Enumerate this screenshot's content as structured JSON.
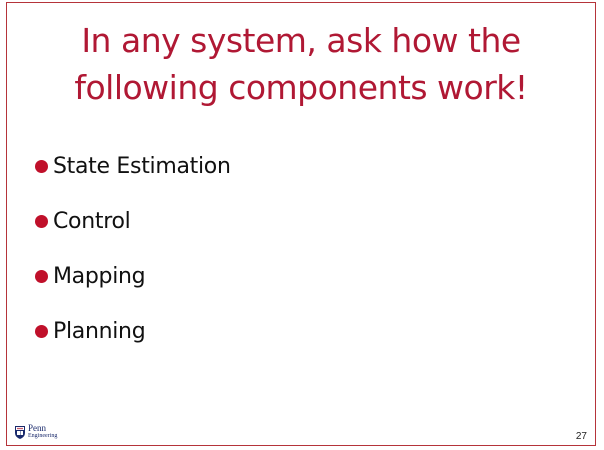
{
  "slide": {
    "title": "In any system, ask how the following components work!",
    "bullets": [
      {
        "label": "State Estimation"
      },
      {
        "label": "Control"
      },
      {
        "label": "Mapping"
      },
      {
        "label": "Planning"
      }
    ],
    "footer": {
      "logo_line1": "Penn",
      "logo_line2": "Engineering",
      "page_number": "27"
    }
  },
  "colors": {
    "title": "#b01834",
    "bullet_dot": "#c0102a",
    "border": "#b5343a"
  },
  "icons": {
    "bullet": "bullet-dot-icon",
    "logo": "penn-shield-icon"
  }
}
